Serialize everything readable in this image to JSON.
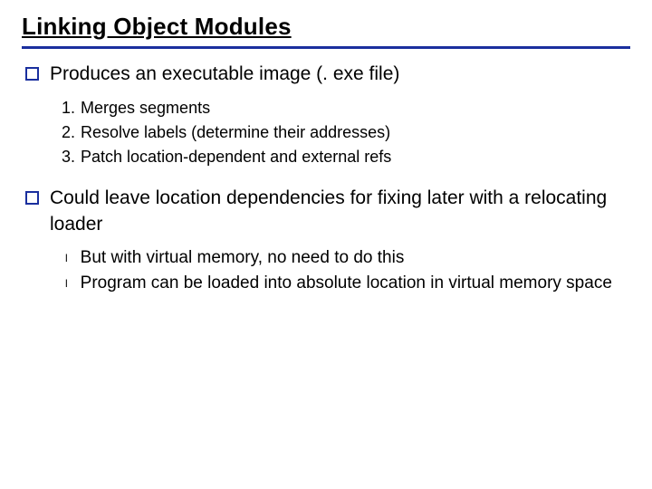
{
  "colors": {
    "rule": "#1a2f9e",
    "bullet_border": "#1a2f9e",
    "text": "#000000",
    "background": "#ffffff"
  },
  "title": "Linking Object Modules",
  "items": [
    {
      "text": "Produces an executable image (. exe file)",
      "numbered": [
        {
          "n": "1.",
          "text": "Merges segments"
        },
        {
          "n": "2.",
          "text": "Resolve labels (determine their addresses)"
        },
        {
          "n": "3.",
          "text": "Patch location-dependent and external refs"
        }
      ]
    },
    {
      "text": "Could leave location dependencies for fixing later with a relocating loader",
      "sub": [
        {
          "text": "But with virtual memory, no need to do this"
        },
        {
          "text": "Program can be loaded into absolute location in virtual memory space"
        }
      ]
    }
  ]
}
